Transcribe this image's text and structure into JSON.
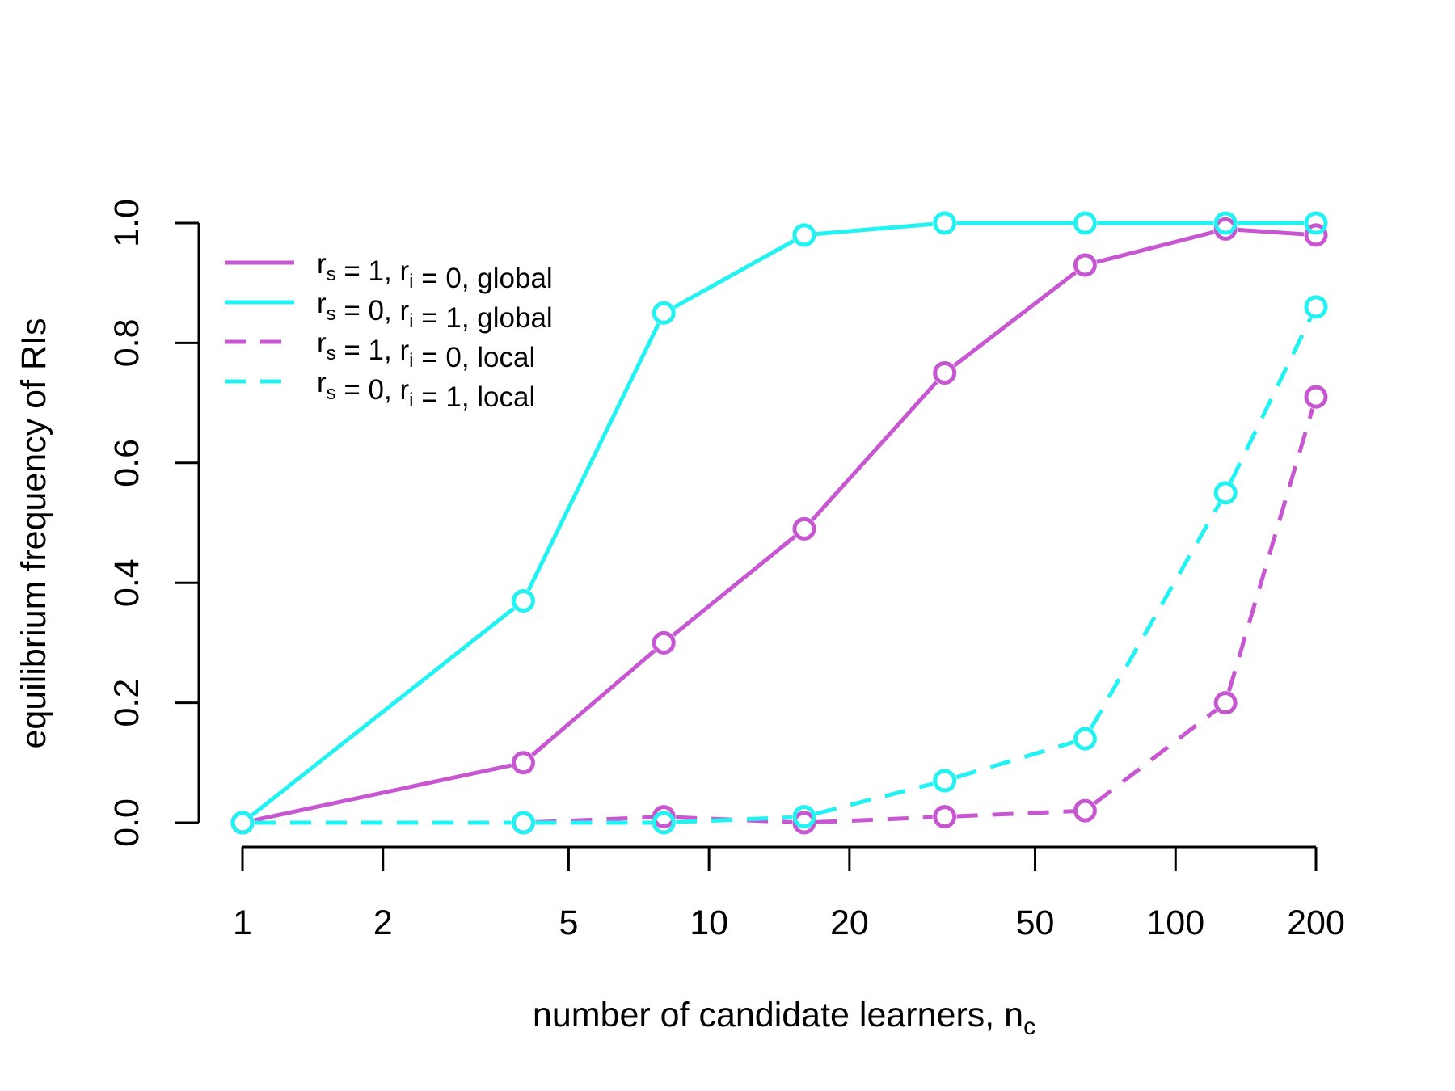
{
  "chart_data": {
    "type": "line",
    "title": "",
    "xlabel_main": "number of candidate learners, n",
    "xlabel_sub": "c",
    "ylabel": "equilibrium frequency of RIs",
    "x_scale": "log",
    "xlim": [
      1,
      200
    ],
    "ylim": [
      0,
      1
    ],
    "x_ticks": [
      1,
      2,
      5,
      10,
      20,
      50,
      100,
      200
    ],
    "x_tick_labels": [
      "1",
      "2",
      "5",
      "10",
      "20",
      "50",
      "100",
      "200"
    ],
    "y_ticks": [
      0,
      0.2,
      0.4,
      0.6,
      0.8,
      1
    ],
    "y_tick_labels": [
      "0.0",
      "0.2",
      "0.4",
      "0.6",
      "0.8",
      "1.0"
    ],
    "grid": false,
    "legend_position": "top-left",
    "x": [
      1,
      4,
      8,
      16,
      32,
      64,
      128,
      200
    ],
    "series": [
      {
        "color": "#c757d1",
        "dash": "solid",
        "legend_parts": [
          [
            "r",
            "s"
          ],
          [
            " = 1, ",
            ""
          ],
          [
            "r",
            "i"
          ],
          [
            " = 0, global",
            ""
          ]
        ],
        "values": [
          0,
          0.1,
          0.3,
          0.49,
          0.75,
          0.93,
          0.99,
          0.98
        ]
      },
      {
        "color": "#22f2f2",
        "dash": "solid",
        "legend_parts": [
          [
            "r",
            "s"
          ],
          [
            " = 0, ",
            ""
          ],
          [
            "r",
            "i"
          ],
          [
            " = 1, global",
            ""
          ]
        ],
        "values": [
          0,
          0.37,
          0.85,
          0.98,
          1.0,
          1.0,
          1.0,
          1.0
        ]
      },
      {
        "color": "#c757d1",
        "dash": "dashed",
        "legend_parts": [
          [
            "r",
            "s"
          ],
          [
            " = 1, ",
            ""
          ],
          [
            "r",
            "i"
          ],
          [
            " = 0, local",
            ""
          ]
        ],
        "values": [
          0,
          0,
          0.01,
          0,
          0.01,
          0.02,
          0.2,
          0.71
        ]
      },
      {
        "color": "#22f2f2",
        "dash": "dashed",
        "legend_parts": [
          [
            "r",
            "s"
          ],
          [
            " = 0, ",
            ""
          ],
          [
            "r",
            "i"
          ],
          [
            " = 1, local",
            ""
          ]
        ],
        "values": [
          0,
          0,
          0,
          0.01,
          0.07,
          0.14,
          0.55,
          0.86
        ]
      }
    ]
  }
}
